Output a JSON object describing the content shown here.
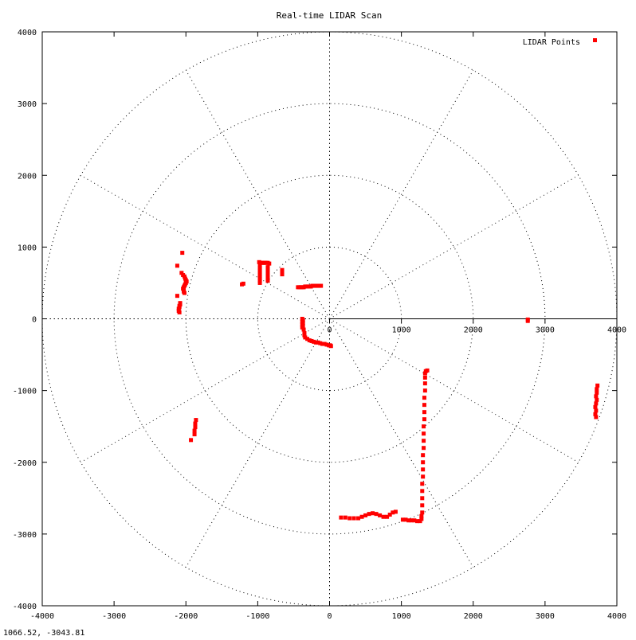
{
  "chart_data": {
    "type": "scatter",
    "title": "Real-time LIDAR Scan",
    "xlabel": "",
    "ylabel": "",
    "xlim": [
      -4000,
      4000
    ],
    "ylim": [
      -4000,
      4000
    ],
    "x_ticks": [
      -4000,
      -3000,
      -2000,
      -1000,
      0,
      1000,
      2000,
      3000,
      4000
    ],
    "y_ticks": [
      -4000,
      -3000,
      -2000,
      -1000,
      0,
      1000,
      2000,
      3000,
      4000
    ],
    "polar_r_ticks": [
      0,
      1000,
      2000,
      3000,
      4000
    ],
    "polar_grid_rings": [
      1000,
      2000,
      3000,
      4000
    ],
    "polar_grid_spoke_step_deg": 30,
    "grid": true,
    "legend_position": "top-right",
    "colors": {
      "series": "#ff0000",
      "grid": "#000000",
      "axes": "#000000"
    },
    "series": [
      {
        "name": "LIDAR Points",
        "points": [
          [
            -2050,
            920
          ],
          [
            -2120,
            740
          ],
          [
            -2060,
            640
          ],
          [
            -2040,
            610
          ],
          [
            -2020,
            590
          ],
          [
            -2010,
            560
          ],
          [
            -2000,
            540
          ],
          [
            -1990,
            520
          ],
          [
            -2000,
            500
          ],
          [
            -2010,
            480
          ],
          [
            -2020,
            460
          ],
          [
            -2030,
            440
          ],
          [
            -2040,
            420
          ],
          [
            -2030,
            400
          ],
          [
            -2030,
            380
          ],
          [
            -2020,
            360
          ],
          [
            -2120,
            320
          ],
          [
            -2080,
            220
          ],
          [
            -2080,
            200
          ],
          [
            -2090,
            180
          ],
          [
            -2090,
            160
          ],
          [
            -2100,
            140
          ],
          [
            -2100,
            110
          ],
          [
            -2090,
            90
          ],
          [
            -1220,
            480
          ],
          [
            -1200,
            490
          ],
          [
            -980,
            790
          ],
          [
            -960,
            780
          ],
          [
            -940,
            780
          ],
          [
            -920,
            780
          ],
          [
            -900,
            780
          ],
          [
            -880,
            780
          ],
          [
            -860,
            780
          ],
          [
            -840,
            770
          ],
          [
            -970,
            740
          ],
          [
            -970,
            710
          ],
          [
            -970,
            680
          ],
          [
            -970,
            650
          ],
          [
            -970,
            620
          ],
          [
            -970,
            590
          ],
          [
            -970,
            560
          ],
          [
            -970,
            530
          ],
          [
            -970,
            500
          ],
          [
            -860,
            720
          ],
          [
            -860,
            680
          ],
          [
            -860,
            640
          ],
          [
            -860,
            600
          ],
          [
            -860,
            560
          ],
          [
            -860,
            530
          ],
          [
            -660,
            680
          ],
          [
            -660,
            650
          ],
          [
            -660,
            620
          ],
          [
            -440,
            440
          ],
          [
            -420,
            440
          ],
          [
            -400,
            440
          ],
          [
            -380,
            440
          ],
          [
            -360,
            440
          ],
          [
            -340,
            450
          ],
          [
            -320,
            450
          ],
          [
            -300,
            450
          ],
          [
            -280,
            450
          ],
          [
            -260,
            450
          ],
          [
            -240,
            460
          ],
          [
            -220,
            460
          ],
          [
            -200,
            460
          ],
          [
            -180,
            460
          ],
          [
            -160,
            460
          ],
          [
            -140,
            460
          ],
          [
            -120,
            460
          ],
          [
            -380,
            0
          ],
          [
            -370,
            -20
          ],
          [
            -380,
            -40
          ],
          [
            -370,
            -60
          ],
          [
            -380,
            -80
          ],
          [
            -370,
            -100
          ],
          [
            -380,
            -120
          ],
          [
            -360,
            -150
          ],
          [
            -350,
            -200
          ],
          [
            -350,
            -230
          ],
          [
            -340,
            -260
          ],
          [
            -310,
            -280
          ],
          [
            -280,
            -300
          ],
          [
            -250,
            -310
          ],
          [
            -220,
            -320
          ],
          [
            -190,
            -330
          ],
          [
            -160,
            -330
          ],
          [
            -130,
            -340
          ],
          [
            -100,
            -350
          ],
          [
            -70,
            -350
          ],
          [
            -40,
            -360
          ],
          [
            -10,
            -370
          ],
          [
            10,
            -370
          ],
          [
            20,
            -380
          ],
          [
            2760,
            -10
          ],
          [
            2760,
            -30
          ],
          [
            -1930,
            -1690
          ],
          [
            -1880,
            -1610
          ],
          [
            -1880,
            -1560
          ],
          [
            -1870,
            -1510
          ],
          [
            -1870,
            -1460
          ],
          [
            -1860,
            -1410
          ],
          [
            1360,
            -720
          ],
          [
            1340,
            -730
          ],
          [
            1330,
            -760
          ],
          [
            1330,
            -820
          ],
          [
            1330,
            -900
          ],
          [
            1330,
            -1000
          ],
          [
            1320,
            -1100
          ],
          [
            1320,
            -1200
          ],
          [
            1320,
            -1300
          ],
          [
            1320,
            -1400
          ],
          [
            1310,
            -1500
          ],
          [
            1310,
            -1600
          ],
          [
            1310,
            -1700
          ],
          [
            1310,
            -1800
          ],
          [
            1300,
            -1900
          ],
          [
            1300,
            -2000
          ],
          [
            1300,
            -2100
          ],
          [
            1300,
            -2200
          ],
          [
            1290,
            -2300
          ],
          [
            1290,
            -2400
          ],
          [
            1290,
            -2500
          ],
          [
            1290,
            -2600
          ],
          [
            1290,
            -2700
          ],
          [
            1280,
            -2750
          ],
          [
            1280,
            -2790
          ],
          [
            1020,
            -2800
          ],
          [
            1060,
            -2800
          ],
          [
            1100,
            -2810
          ],
          [
            1140,
            -2810
          ],
          [
            1180,
            -2810
          ],
          [
            1220,
            -2820
          ],
          [
            1260,
            -2820
          ],
          [
            160,
            -2770
          ],
          [
            220,
            -2770
          ],
          [
            280,
            -2780
          ],
          [
            340,
            -2780
          ],
          [
            400,
            -2780
          ],
          [
            450,
            -2760
          ],
          [
            500,
            -2740
          ],
          [
            550,
            -2720
          ],
          [
            600,
            -2710
          ],
          [
            650,
            -2720
          ],
          [
            700,
            -2740
          ],
          [
            750,
            -2760
          ],
          [
            800,
            -2760
          ],
          [
            840,
            -2730
          ],
          [
            880,
            -2700
          ],
          [
            920,
            -2690
          ],
          [
            3730,
            -930
          ],
          [
            3720,
            -980
          ],
          [
            3720,
            -1030
          ],
          [
            3710,
            -1080
          ],
          [
            3720,
            -1130
          ],
          [
            3710,
            -1180
          ],
          [
            3700,
            -1230
          ],
          [
            3710,
            -1280
          ],
          [
            3700,
            -1330
          ],
          [
            3710,
            -1370
          ]
        ]
      }
    ]
  },
  "status": {
    "coords": "1066.52, -3043.81"
  }
}
